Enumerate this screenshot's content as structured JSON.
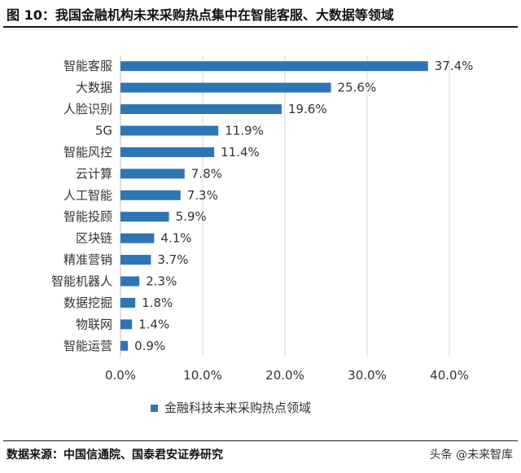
{
  "header": {
    "title": "图 10：我国金融机构未来采购热点集中在智能客服、大数据等领域"
  },
  "footer": {
    "source": "数据来源：中国信通院、国泰君安证券研究",
    "watermark": "头条 @未来智库"
  },
  "colors": {
    "bar": "#2E75B6",
    "text": "#333333"
  },
  "chart_data": {
    "type": "bar",
    "orientation": "horizontal",
    "categories": [
      "智能客服",
      "大数据",
      "人脸识别",
      "5G",
      "智能风控",
      "云计算",
      "人工智能",
      "智能投顾",
      "区块链",
      "精准营销",
      "智能机器人",
      "数据挖掘",
      "物联网",
      "智能运营"
    ],
    "series": [
      {
        "name": "金融科技未来采购热点领域",
        "values": [
          37.4,
          25.6,
          19.6,
          11.9,
          11.4,
          7.8,
          7.3,
          5.9,
          4.1,
          3.7,
          2.3,
          1.8,
          1.4,
          0.9
        ],
        "value_labels": [
          "37.4%",
          "25.6%",
          "19.6%",
          "11.9%",
          "11.4%",
          "7.8%",
          "7.3%",
          "5.9%",
          "4.1%",
          "3.7%",
          "2.3%",
          "1.8%",
          "1.4%",
          "0.9%"
        ]
      }
    ],
    "xlim": [
      0,
      40
    ],
    "xticks": [
      "0.0%",
      "10.0%",
      "20.0%",
      "30.0%",
      "40.0%"
    ],
    "grid": true,
    "legend": "bottom-center"
  }
}
